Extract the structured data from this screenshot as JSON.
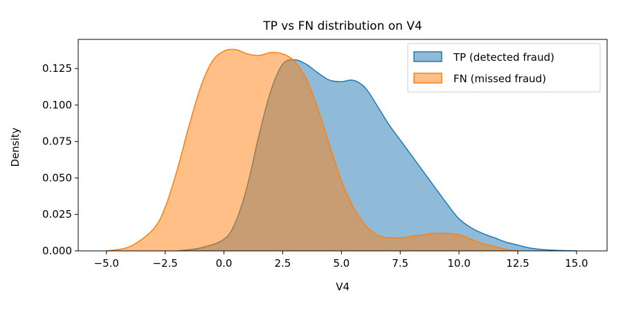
{
  "chart_data": {
    "type": "area",
    "title": "TP vs FN distribution on V4",
    "xlabel": "V4",
    "ylabel": "Density",
    "xlim": [
      -6.2,
      16.3
    ],
    "ylim": [
      0.0,
      0.145
    ],
    "xticks": [
      -5.0,
      -2.5,
      0.0,
      2.5,
      5.0,
      7.5,
      10.0,
      12.5,
      15.0
    ],
    "xtick_labels": [
      "−5.0",
      "−2.5",
      "0.0",
      "2.5",
      "5.0",
      "7.5",
      "10.0",
      "12.5",
      "15.0"
    ],
    "yticks": [
      0.0,
      0.025,
      0.05,
      0.075,
      0.1,
      0.125
    ],
    "ytick_labels": [
      "0.000",
      "0.025",
      "0.050",
      "0.075",
      "0.100",
      "0.125"
    ],
    "grid": false,
    "legend_position": "top-right",
    "series": [
      {
        "name": "TP (detected fraud)",
        "color": "#1f77b4",
        "x": [
          -2.0,
          -1.0,
          0.0,
          0.5,
          1.0,
          1.5,
          2.0,
          2.5,
          3.0,
          3.5,
          4.0,
          4.5,
          5.0,
          5.5,
          6.0,
          6.5,
          7.0,
          7.5,
          8.0,
          8.5,
          9.0,
          9.5,
          10.0,
          10.5,
          11.0,
          11.5,
          12.0,
          12.5,
          13.0,
          13.5,
          14.0,
          14.5,
          15.0
        ],
        "y": [
          0.0,
          0.002,
          0.008,
          0.02,
          0.045,
          0.08,
          0.11,
          0.128,
          0.131,
          0.128,
          0.122,
          0.117,
          0.116,
          0.117,
          0.112,
          0.1,
          0.087,
          0.076,
          0.065,
          0.054,
          0.043,
          0.032,
          0.022,
          0.016,
          0.012,
          0.009,
          0.006,
          0.004,
          0.002,
          0.001,
          0.0005,
          0.0002,
          0.0
        ]
      },
      {
        "name": "FN (missed fraud)",
        "color": "#ff7f0e",
        "x": [
          -5.0,
          -4.0,
          -3.0,
          -2.5,
          -2.0,
          -1.5,
          -1.0,
          -0.5,
          0.0,
          0.5,
          1.0,
          1.5,
          2.0,
          2.5,
          3.0,
          3.5,
          4.0,
          4.5,
          5.0,
          5.5,
          6.0,
          6.5,
          7.0,
          7.5,
          8.0,
          8.5,
          9.0,
          9.5,
          10.0,
          10.5,
          11.0,
          11.5,
          12.0,
          12.5
        ],
        "y": [
          0.0,
          0.003,
          0.015,
          0.03,
          0.055,
          0.085,
          0.112,
          0.13,
          0.137,
          0.138,
          0.135,
          0.134,
          0.136,
          0.135,
          0.13,
          0.118,
          0.097,
          0.072,
          0.048,
          0.03,
          0.018,
          0.011,
          0.009,
          0.009,
          0.01,
          0.011,
          0.012,
          0.012,
          0.011,
          0.008,
          0.005,
          0.003,
          0.001,
          0.0
        ]
      }
    ]
  }
}
